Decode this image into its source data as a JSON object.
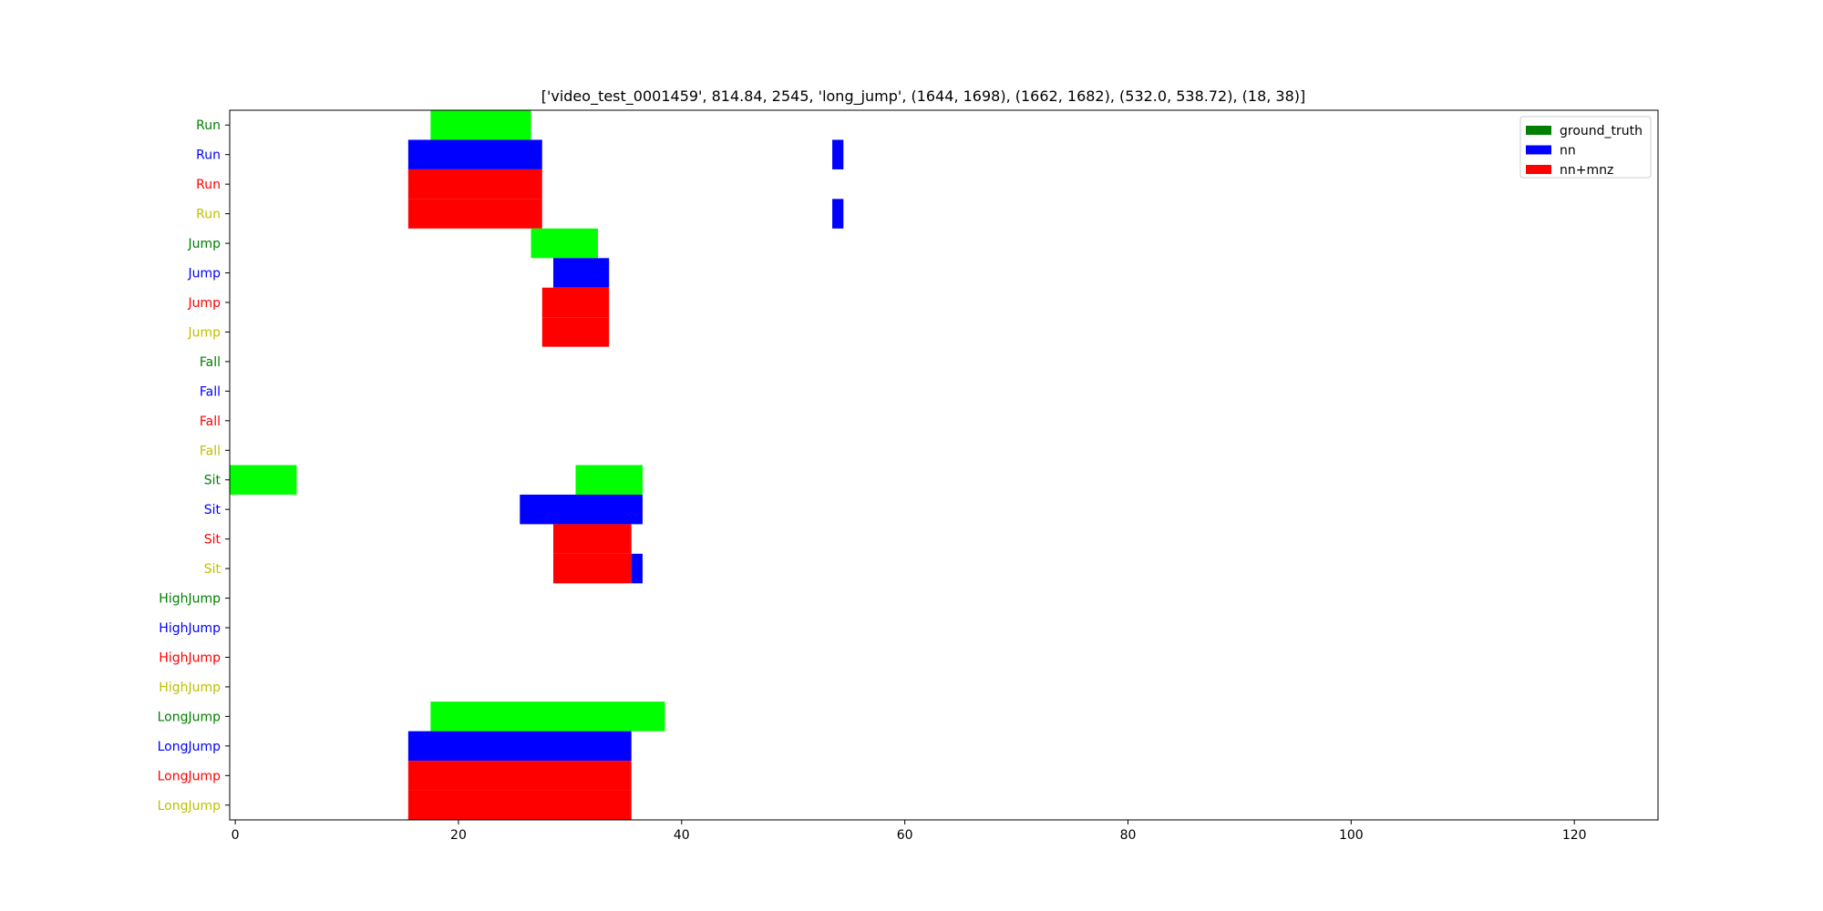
{
  "chart_data": {
    "type": "bar",
    "orientation": "horizontal",
    "title": "['video_test_0001459', 814.84, 2545, 'long_jump', (1644, 1698), (1662, 1682), (532.0, 538.72), (18, 38)]",
    "xlabel": "",
    "ylabel": "",
    "xlim": [
      -0.5,
      127.5
    ],
    "x_ticks": [
      0,
      20,
      40,
      60,
      80,
      100,
      120
    ],
    "x_tick_labels": [
      "0",
      "20",
      "40",
      "60",
      "80",
      "100",
      "120"
    ],
    "grid": false,
    "legend_position": "top-right",
    "legend": [
      {
        "label": "ground_truth",
        "color": "#008000"
      },
      {
        "label": "nn",
        "color": "#0000ff"
      },
      {
        "label": "nn+mnz",
        "color": "#ff0000"
      }
    ],
    "rows": [
      {
        "label": "Run",
        "color": "#008000"
      },
      {
        "label": "Run",
        "color": "#0000ff"
      },
      {
        "label": "Run",
        "color": "#ff0000"
      },
      {
        "label": "Run",
        "color": "#bfbf00"
      },
      {
        "label": "Jump",
        "color": "#008000"
      },
      {
        "label": "Jump",
        "color": "#0000ff"
      },
      {
        "label": "Jump",
        "color": "#ff0000"
      },
      {
        "label": "Jump",
        "color": "#bfbf00"
      },
      {
        "label": "Fall",
        "color": "#008000"
      },
      {
        "label": "Fall",
        "color": "#0000ff"
      },
      {
        "label": "Fall",
        "color": "#ff0000"
      },
      {
        "label": "Fall",
        "color": "#bfbf00"
      },
      {
        "label": "Sit",
        "color": "#008000"
      },
      {
        "label": "Sit",
        "color": "#0000ff"
      },
      {
        "label": "Sit",
        "color": "#ff0000"
      },
      {
        "label": "Sit",
        "color": "#bfbf00"
      },
      {
        "label": "HighJump",
        "color": "#008000"
      },
      {
        "label": "HighJump",
        "color": "#0000ff"
      },
      {
        "label": "HighJump",
        "color": "#ff0000"
      },
      {
        "label": "HighJump",
        "color": "#bfbf00"
      },
      {
        "label": "LongJump",
        "color": "#008000"
      },
      {
        "label": "LongJump",
        "color": "#0000ff"
      },
      {
        "label": "LongJump",
        "color": "#ff0000"
      },
      {
        "label": "LongJump",
        "color": "#bfbf00"
      }
    ],
    "segments": [
      {
        "row": 0,
        "start": 17.5,
        "end": 26.5,
        "color": "#00ff00"
      },
      {
        "row": 1,
        "start": 15.5,
        "end": 27.5,
        "color": "#0000ff"
      },
      {
        "row": 1,
        "start": 53.5,
        "end": 54.5,
        "color": "#0000ff"
      },
      {
        "row": 2,
        "start": 15.5,
        "end": 27.5,
        "color": "#ff0000"
      },
      {
        "row": 3,
        "start": 15.5,
        "end": 27.5,
        "color": "#ff0000"
      },
      {
        "row": 3,
        "start": 53.5,
        "end": 54.5,
        "color": "#0000ff"
      },
      {
        "row": 4,
        "start": 26.5,
        "end": 32.5,
        "color": "#00ff00"
      },
      {
        "row": 5,
        "start": 28.5,
        "end": 33.5,
        "color": "#0000ff"
      },
      {
        "row": 6,
        "start": 27.5,
        "end": 33.5,
        "color": "#ff0000"
      },
      {
        "row": 7,
        "start": 27.5,
        "end": 33.5,
        "color": "#ff0000"
      },
      {
        "row": 12,
        "start": -0.5,
        "end": 5.5,
        "color": "#00ff00"
      },
      {
        "row": 12,
        "start": 30.5,
        "end": 36.5,
        "color": "#00ff00"
      },
      {
        "row": 13,
        "start": 25.5,
        "end": 36.5,
        "color": "#0000ff"
      },
      {
        "row": 14,
        "start": 28.5,
        "end": 35.5,
        "color": "#ff0000"
      },
      {
        "row": 15,
        "start": 28.5,
        "end": 35.5,
        "color": "#ff0000"
      },
      {
        "row": 15,
        "start": 35.5,
        "end": 36.5,
        "color": "#0000ff"
      },
      {
        "row": 20,
        "start": 17.5,
        "end": 38.5,
        "color": "#00ff00"
      },
      {
        "row": 21,
        "start": 15.5,
        "end": 35.5,
        "color": "#0000ff"
      },
      {
        "row": 22,
        "start": 15.5,
        "end": 35.5,
        "color": "#ff0000"
      },
      {
        "row": 23,
        "start": 15.5,
        "end": 35.5,
        "color": "#ff0000"
      }
    ]
  }
}
